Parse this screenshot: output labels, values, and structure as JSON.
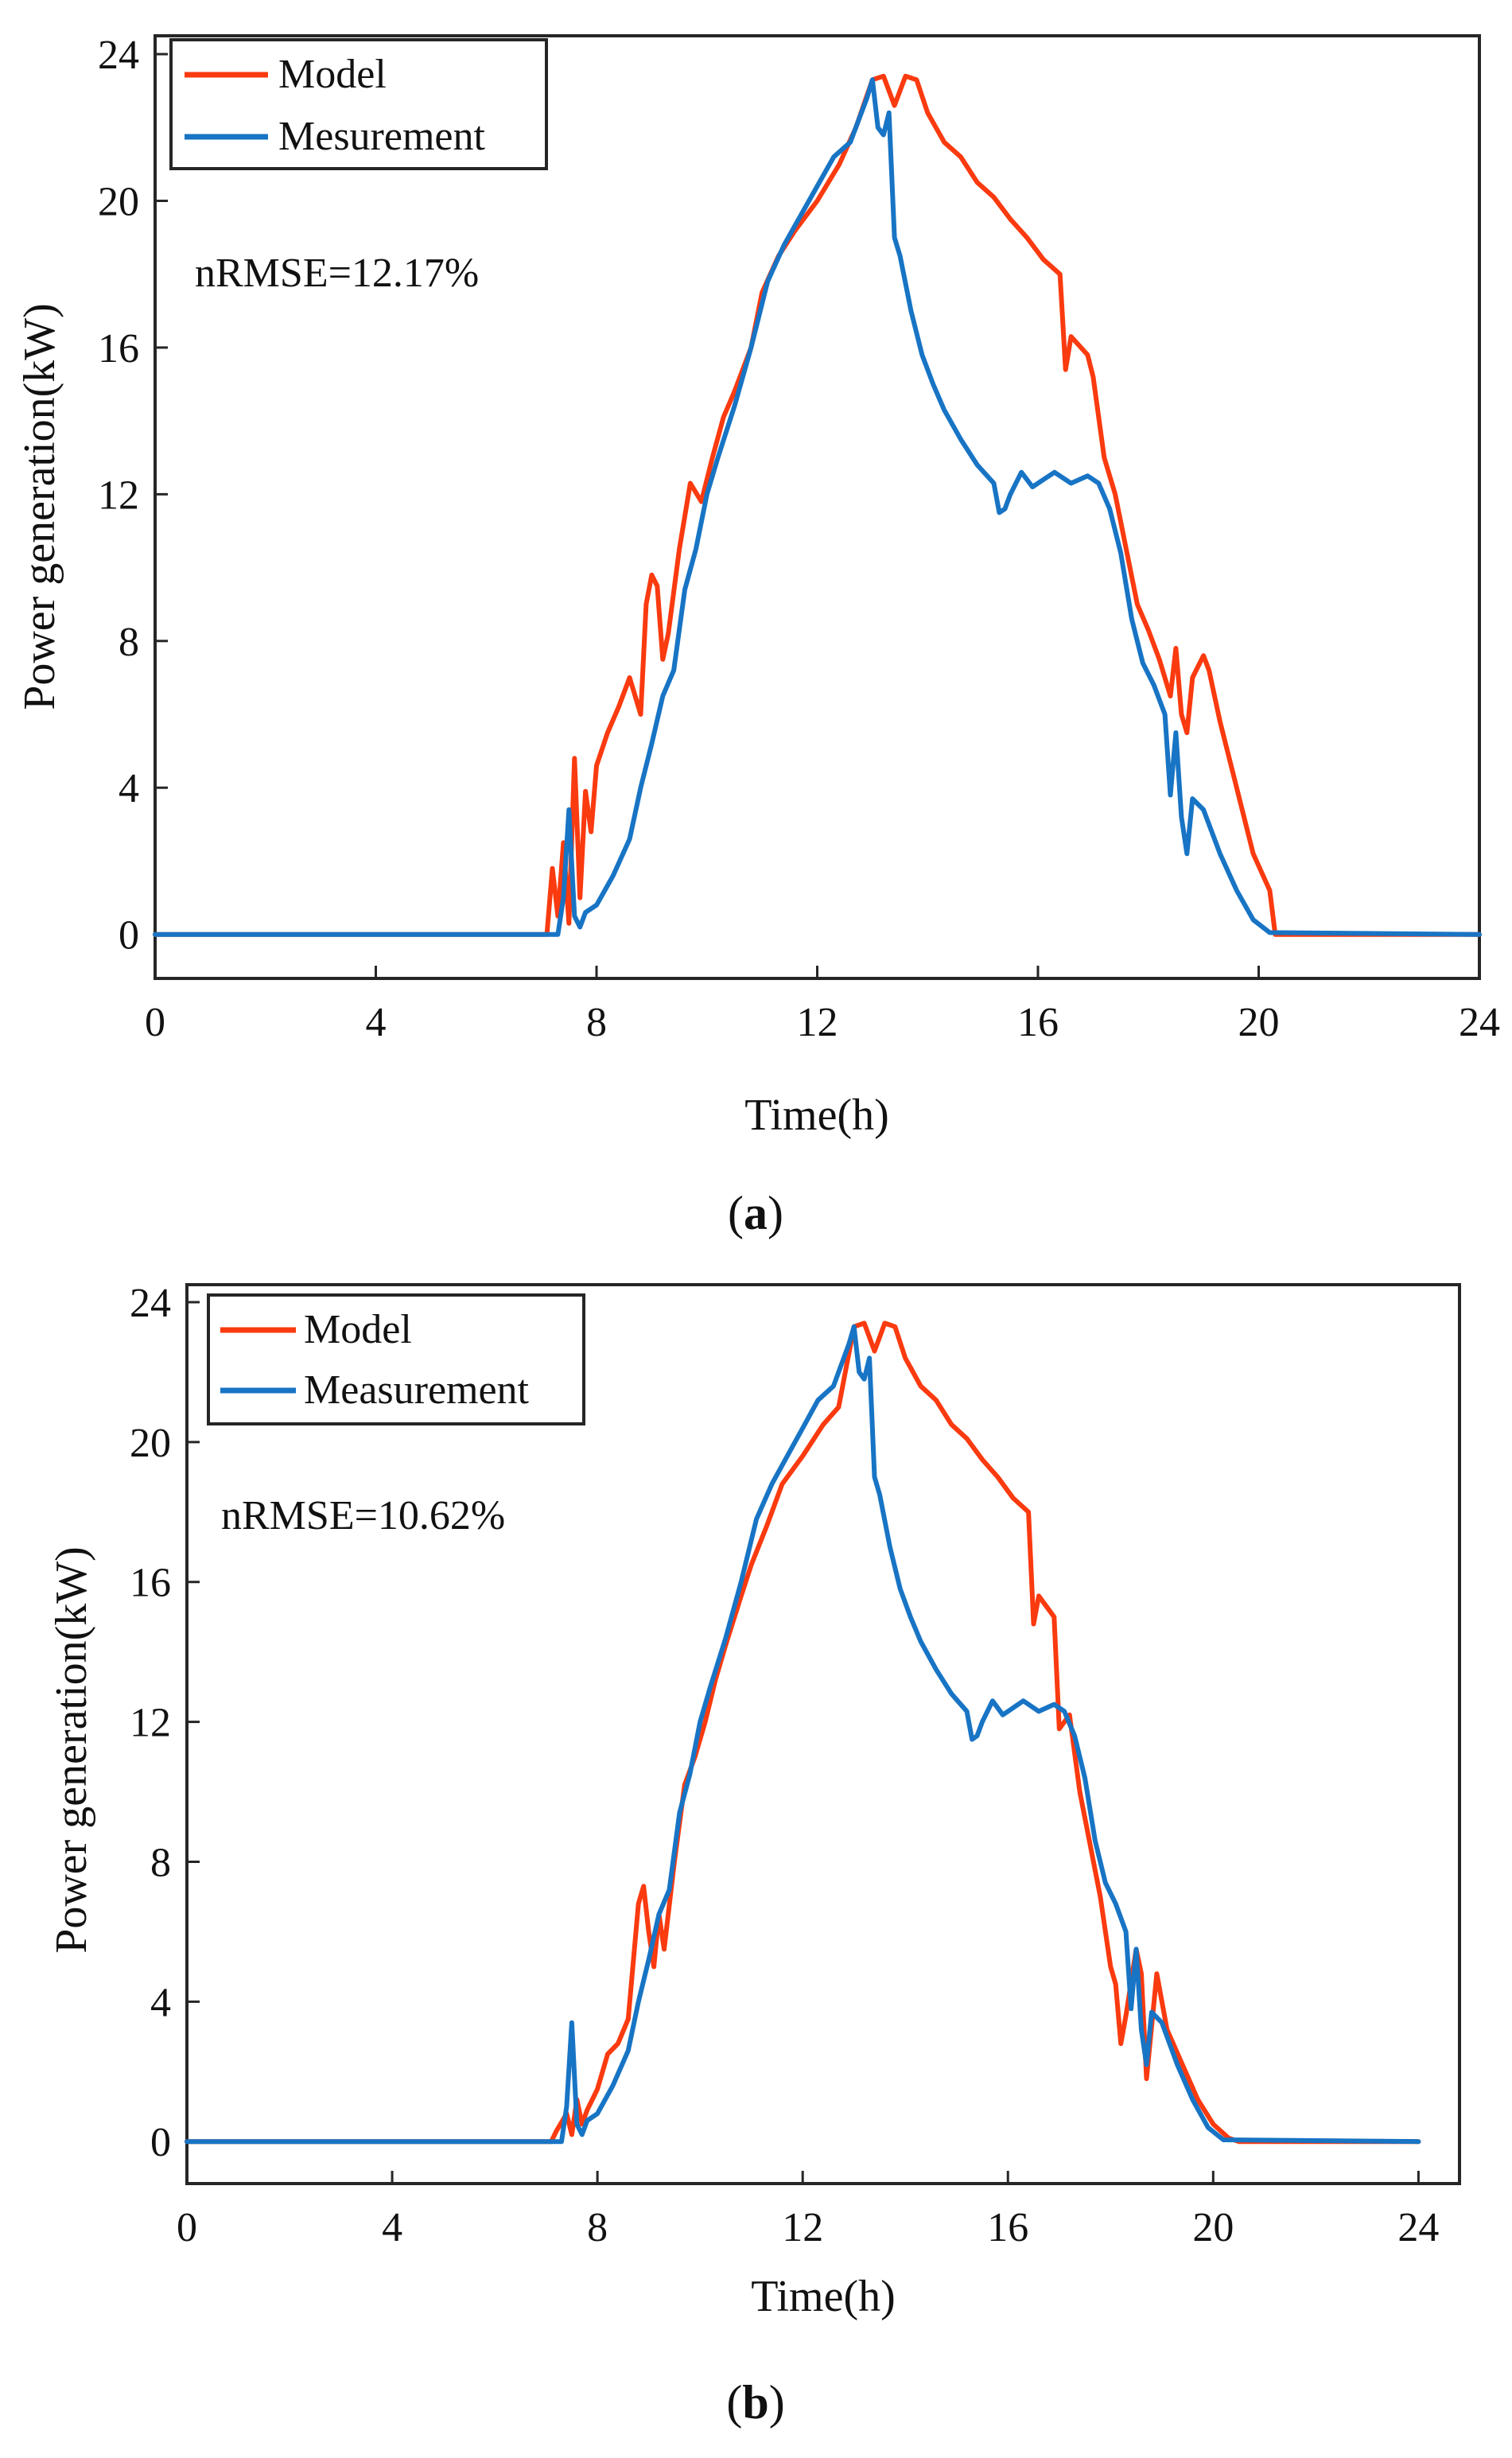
{
  "figure": {
    "colors": {
      "model": "#FA3A0F",
      "measurement": "#1874C4",
      "axis": "#262626"
    }
  },
  "chart_data": [
    {
      "type": "line",
      "panel_label": "(a)",
      "panel_letter": "a",
      "xlabel": "Time(h)",
      "ylabel": "Power generation(kW)",
      "xlim": [
        0,
        24
      ],
      "ylim": [
        -1.2,
        24.5
      ],
      "xticks": [
        0,
        4,
        8,
        12,
        16,
        20,
        24
      ],
      "yticks": [
        0,
        4,
        8,
        12,
        16,
        20,
        24
      ],
      "xtick_labels": [
        "0",
        "4",
        "8",
        "12",
        "16",
        "20",
        "24"
      ],
      "ytick_labels": [
        "0",
        "4",
        "8",
        "12",
        "16",
        "20",
        "24"
      ],
      "annotation": "nRMSE=12.17%",
      "legend": {
        "position": "top-left",
        "entries": [
          "Model",
          "Mesurement"
        ]
      },
      "series": [
        {
          "name": "Model",
          "color": "#FA3A0F",
          "x": [
            0,
            7.1,
            7.2,
            7.3,
            7.4,
            7.5,
            7.6,
            7.7,
            7.8,
            7.9,
            8.0,
            8.2,
            8.4,
            8.6,
            8.8,
            8.9,
            9.0,
            9.1,
            9.2,
            9.3,
            9.5,
            9.7,
            9.9,
            10.1,
            10.3,
            10.5,
            10.8,
            11.0,
            11.3,
            11.6,
            12.0,
            12.4,
            12.7,
            13.0,
            13.2,
            13.4,
            13.6,
            13.8,
            14.0,
            14.3,
            14.6,
            14.9,
            15.2,
            15.5,
            15.8,
            16.1,
            16.4,
            16.5,
            16.6,
            16.9,
            17.0,
            17.2,
            17.4,
            17.6,
            17.8,
            18.0,
            18.2,
            18.4,
            18.5,
            18.6,
            18.7,
            18.8,
            19.0,
            19.1,
            19.3,
            19.6,
            19.9,
            20.2,
            20.3,
            21.0,
            24.0
          ],
          "y": [
            0,
            0,
            1.8,
            0.5,
            2.5,
            0.3,
            4.8,
            1.0,
            3.9,
            2.8,
            4.6,
            5.5,
            6.2,
            7.0,
            6.0,
            9.0,
            9.8,
            9.5,
            7.5,
            8.2,
            10.5,
            12.3,
            11.8,
            13.0,
            14.1,
            14.8,
            16.0,
            17.5,
            18.5,
            19.2,
            20.0,
            21.0,
            22.0,
            23.3,
            23.4,
            22.6,
            23.4,
            23.3,
            22.4,
            21.6,
            21.2,
            20.5,
            20.1,
            19.5,
            19.0,
            18.4,
            18.0,
            15.4,
            16.3,
            15.8,
            15.2,
            13.0,
            12.0,
            10.5,
            9.0,
            8.3,
            7.5,
            6.5,
            7.8,
            6.0,
            5.5,
            7.0,
            7.6,
            7.2,
            5.8,
            4.0,
            2.2,
            1.2,
            0,
            0,
            0
          ]
        },
        {
          "name": "Mesurement",
          "color": "#1874C4",
          "x": [
            0,
            7.3,
            7.4,
            7.5,
            7.6,
            7.7,
            7.8,
            8.0,
            8.3,
            8.6,
            8.8,
            9.0,
            9.2,
            9.4,
            9.6,
            9.8,
            10.0,
            10.2,
            10.5,
            10.8,
            11.1,
            11.4,
            11.7,
            12.0,
            12.3,
            12.6,
            12.9,
            13.0,
            13.1,
            13.2,
            13.3,
            13.4,
            13.5,
            13.7,
            13.9,
            14.1,
            14.3,
            14.6,
            14.9,
            15.2,
            15.3,
            15.4,
            15.5,
            15.7,
            15.9,
            16.1,
            16.3,
            16.6,
            16.9,
            17.1,
            17.3,
            17.5,
            17.7,
            17.9,
            18.1,
            18.3,
            18.4,
            18.5,
            18.6,
            18.7,
            18.8,
            19.0,
            19.3,
            19.6,
            19.9,
            20.2,
            24.0
          ],
          "y": [
            0,
            0,
            1.0,
            3.4,
            0.5,
            0.2,
            0.6,
            0.8,
            1.6,
            2.6,
            4.0,
            5.2,
            6.5,
            7.2,
            9.4,
            10.5,
            12.0,
            13.0,
            14.4,
            16.0,
            17.8,
            18.8,
            19.6,
            20.4,
            21.2,
            21.6,
            22.8,
            23.3,
            22.0,
            21.8,
            22.4,
            19.0,
            18.5,
            17.0,
            15.8,
            15.0,
            14.3,
            13.5,
            12.8,
            12.3,
            11.5,
            11.6,
            12.0,
            12.6,
            12.2,
            12.4,
            12.6,
            12.3,
            12.5,
            12.3,
            11.6,
            10.4,
            8.6,
            7.4,
            6.8,
            6.0,
            3.8,
            5.5,
            3.2,
            2.2,
            3.7,
            3.4,
            2.2,
            1.2,
            0.4,
            0.05,
            0
          ]
        }
      ]
    },
    {
      "type": "line",
      "panel_label": "(b)",
      "panel_letter": "b",
      "xlabel": "Time(h)",
      "ylabel": "Power generation(kW)",
      "xlim": [
        0,
        24.8
      ],
      "ylim": [
        -1.2,
        24.5
      ],
      "xticks": [
        0,
        4,
        8,
        12,
        16,
        20,
        24
      ],
      "yticks": [
        0,
        4,
        8,
        12,
        16,
        20,
        24
      ],
      "xtick_labels": [
        "0",
        "4",
        "8",
        "12",
        "16",
        "20",
        "24"
      ],
      "ytick_labels": [
        "0",
        "4",
        "8",
        "12",
        "16",
        "20",
        "24"
      ],
      "annotation": "nRMSE=10.62%",
      "legend": {
        "position": "top-left",
        "entries": [
          "Model",
          "Measurement"
        ]
      },
      "series": [
        {
          "name": "Model",
          "color": "#FA3A0F",
          "x": [
            0,
            7.1,
            7.2,
            7.4,
            7.5,
            7.6,
            7.7,
            7.8,
            8.0,
            8.2,
            8.4,
            8.6,
            8.8,
            8.9,
            9.0,
            9.1,
            9.2,
            9.3,
            9.5,
            9.7,
            9.9,
            10.1,
            10.3,
            10.5,
            10.8,
            11.0,
            11.3,
            11.6,
            12.0,
            12.4,
            12.7,
            13.0,
            13.2,
            13.4,
            13.6,
            13.8,
            14.0,
            14.3,
            14.6,
            14.9,
            15.2,
            15.5,
            15.8,
            16.1,
            16.4,
            16.5,
            16.6,
            16.9,
            17.0,
            17.2,
            17.4,
            17.6,
            17.8,
            18.0,
            18.1,
            18.2,
            18.3,
            18.5,
            18.6,
            18.7,
            18.9,
            19.1,
            19.4,
            19.7,
            20.0,
            20.3,
            20.5,
            24.0
          ],
          "y": [
            0,
            0,
            0.3,
            0.8,
            0.2,
            1.2,
            0.5,
            0.9,
            1.5,
            2.5,
            2.8,
            3.5,
            6.8,
            7.3,
            6.0,
            5.0,
            6.5,
            5.5,
            8.0,
            10.2,
            11.0,
            12.0,
            13.2,
            14.2,
            15.6,
            16.5,
            17.6,
            18.8,
            19.6,
            20.5,
            21.0,
            23.3,
            23.4,
            22.6,
            23.4,
            23.3,
            22.4,
            21.6,
            21.2,
            20.5,
            20.1,
            19.5,
            19.0,
            18.4,
            18.0,
            14.8,
            15.6,
            15.0,
            11.8,
            12.2,
            10.0,
            8.5,
            7.0,
            5.0,
            4.5,
            2.8,
            3.6,
            5.5,
            4.8,
            1.8,
            4.8,
            3.2,
            2.2,
            1.2,
            0.5,
            0.1,
            0,
            0
          ]
        },
        {
          "name": "Measurement",
          "color": "#1874C4",
          "x": [
            0,
            7.3,
            7.4,
            7.5,
            7.6,
            7.7,
            7.8,
            8.0,
            8.3,
            8.6,
            8.8,
            9.0,
            9.2,
            9.4,
            9.6,
            9.8,
            10.0,
            10.2,
            10.5,
            10.8,
            11.1,
            11.4,
            11.7,
            12.0,
            12.3,
            12.6,
            12.9,
            13.0,
            13.1,
            13.2,
            13.3,
            13.4,
            13.5,
            13.7,
            13.9,
            14.1,
            14.3,
            14.6,
            14.9,
            15.2,
            15.3,
            15.4,
            15.5,
            15.7,
            15.9,
            16.1,
            16.3,
            16.6,
            16.9,
            17.1,
            17.3,
            17.5,
            17.7,
            17.9,
            18.1,
            18.3,
            18.4,
            18.5,
            18.6,
            18.7,
            18.8,
            19.0,
            19.3,
            19.6,
            19.9,
            20.2,
            24.0
          ],
          "y": [
            0,
            0,
            1.0,
            3.4,
            0.5,
            0.2,
            0.6,
            0.8,
            1.6,
            2.6,
            4.0,
            5.2,
            6.5,
            7.2,
            9.4,
            10.5,
            12.0,
            13.0,
            14.4,
            16.0,
            17.8,
            18.8,
            19.6,
            20.4,
            21.2,
            21.6,
            22.8,
            23.3,
            22.0,
            21.8,
            22.4,
            19.0,
            18.5,
            17.0,
            15.8,
            15.0,
            14.3,
            13.5,
            12.8,
            12.3,
            11.5,
            11.6,
            12.0,
            12.6,
            12.2,
            12.4,
            12.6,
            12.3,
            12.5,
            12.3,
            11.6,
            10.4,
            8.6,
            7.4,
            6.8,
            6.0,
            3.8,
            5.5,
            3.2,
            2.2,
            3.7,
            3.4,
            2.2,
            1.2,
            0.4,
            0.05,
            0
          ]
        }
      ]
    }
  ]
}
